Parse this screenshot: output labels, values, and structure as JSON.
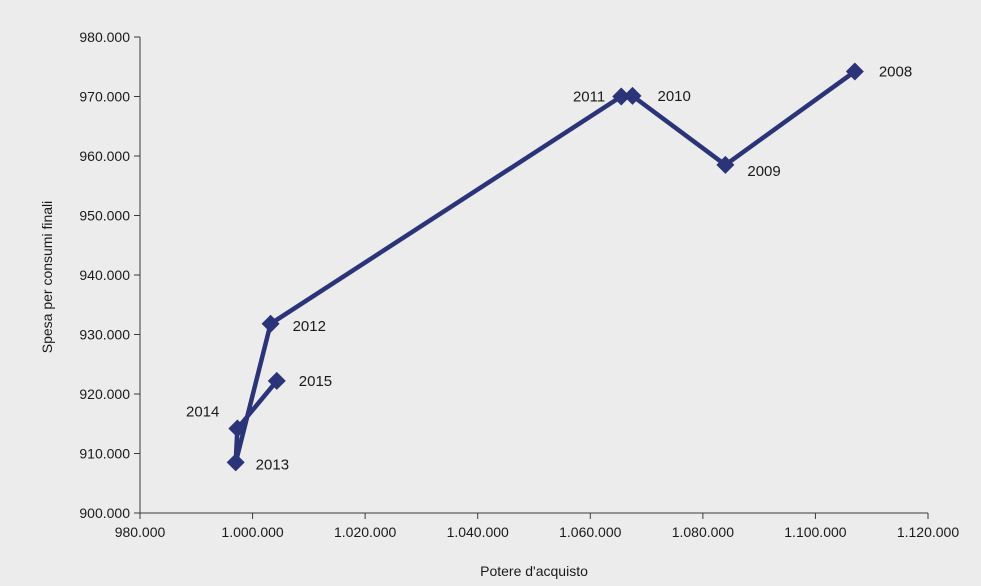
{
  "colors": {
    "background": "#ececed",
    "series_line": "#2b3379",
    "marker": "#2b3379",
    "axis": "#3a3a3a"
  },
  "chart_data": {
    "type": "scatter",
    "title": "",
    "xlabel": "Potere d'acquisto",
    "ylabel": "Spesa per consumi finali",
    "xlim": [
      980000,
      1120000
    ],
    "ylim": [
      900000,
      980000
    ],
    "x_ticks": [
      980000,
      1000000,
      1020000,
      1040000,
      1060000,
      1080000,
      1100000,
      1120000
    ],
    "x_tick_labels": [
      "980.000",
      "1.000.000",
      "1.020.000",
      "1.040.000",
      "1.060.000",
      "1.080.000",
      "1.100.000",
      "1.120.000"
    ],
    "y_ticks": [
      900000,
      910000,
      920000,
      930000,
      940000,
      950000,
      960000,
      970000,
      980000
    ],
    "y_tick_labels": [
      "900.000",
      "910.000",
      "920.000",
      "930.000",
      "940.000",
      "950.000",
      "960.000",
      "970.000",
      "980.000"
    ],
    "grid": false,
    "connected": true,
    "marker": "diamond",
    "points": [
      {
        "label": "2008",
        "x": 1107000,
        "y": 974200
      },
      {
        "label": "2009",
        "x": 1084000,
        "y": 958500
      },
      {
        "label": "2010",
        "x": 1067500,
        "y": 970100
      },
      {
        "label": "2011",
        "x": 1065500,
        "y": 970000
      },
      {
        "label": "2012",
        "x": 1003200,
        "y": 931800
      },
      {
        "label": "2013",
        "x": 997000,
        "y": 908500
      },
      {
        "label": "2014",
        "x": 997300,
        "y": 914200
      },
      {
        "label": "2015",
        "x": 1004300,
        "y": 922200
      }
    ]
  }
}
